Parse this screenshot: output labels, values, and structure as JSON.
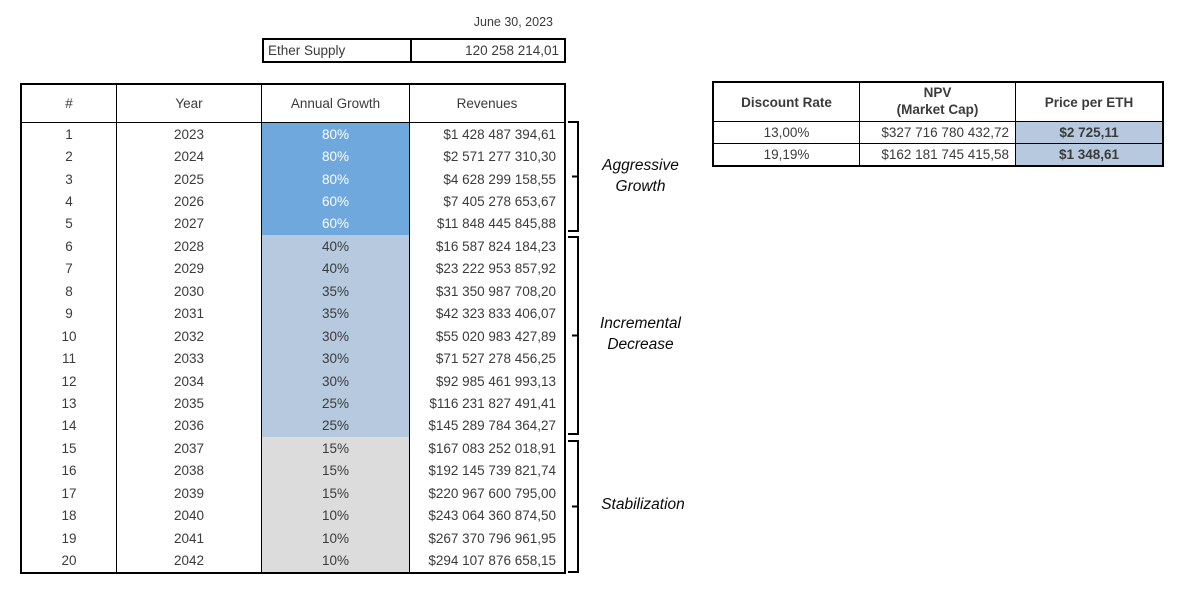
{
  "top": {
    "date": "June 30, 2023",
    "supply_label": "Ether Supply",
    "supply_value": "120 258 214,01"
  },
  "main_table": {
    "headers": {
      "num": "#",
      "year": "Year",
      "growth": "Annual Growth",
      "revenues": "Revenues"
    },
    "rows": [
      {
        "num": "1",
        "year": "2023",
        "growth": "80%",
        "revenue": "$1 428 487 394,61",
        "tier": "dark"
      },
      {
        "num": "2",
        "year": "2024",
        "growth": "80%",
        "revenue": "$2 571 277 310,30",
        "tier": "dark"
      },
      {
        "num": "3",
        "year": "2025",
        "growth": "80%",
        "revenue": "$4 628 299 158,55",
        "tier": "dark"
      },
      {
        "num": "4",
        "year": "2026",
        "growth": "60%",
        "revenue": "$7 405 278 653,67",
        "tier": "dark"
      },
      {
        "num": "5",
        "year": "2027",
        "growth": "60%",
        "revenue": "$11 848 445 845,88",
        "tier": "dark"
      },
      {
        "num": "6",
        "year": "2028",
        "growth": "40%",
        "revenue": "$16 587 824 184,23",
        "tier": "light"
      },
      {
        "num": "7",
        "year": "2029",
        "growth": "40%",
        "revenue": "$23 222 953 857,92",
        "tier": "light"
      },
      {
        "num": "8",
        "year": "2030",
        "growth": "35%",
        "revenue": "$31 350 987 708,20",
        "tier": "light"
      },
      {
        "num": "9",
        "year": "2031",
        "growth": "35%",
        "revenue": "$42 323 833 406,07",
        "tier": "light"
      },
      {
        "num": "10",
        "year": "2032",
        "growth": "30%",
        "revenue": "$55 020 983 427,89",
        "tier": "light"
      },
      {
        "num": "11",
        "year": "2033",
        "growth": "30%",
        "revenue": "$71 527 278 456,25",
        "tier": "light"
      },
      {
        "num": "12",
        "year": "2034",
        "growth": "30%",
        "revenue": "$92 985 461 993,13",
        "tier": "light"
      },
      {
        "num": "13",
        "year": "2035",
        "growth": "25%",
        "revenue": "$116 231 827 491,41",
        "tier": "light"
      },
      {
        "num": "14",
        "year": "2036",
        "growth": "25%",
        "revenue": "$145 289 784 364,27",
        "tier": "light"
      },
      {
        "num": "15",
        "year": "2037",
        "growth": "15%",
        "revenue": "$167 083 252 018,91",
        "tier": "gray"
      },
      {
        "num": "16",
        "year": "2038",
        "growth": "15%",
        "revenue": "$192 145 739 821,74",
        "tier": "gray"
      },
      {
        "num": "17",
        "year": "2039",
        "growth": "15%",
        "revenue": "$220 967 600 795,00",
        "tier": "gray"
      },
      {
        "num": "18",
        "year": "2040",
        "growth": "10%",
        "revenue": "$243 064 360 874,50",
        "tier": "gray"
      },
      {
        "num": "19",
        "year": "2041",
        "growth": "10%",
        "revenue": "$267 370 796 961,95",
        "tier": "gray"
      },
      {
        "num": "20",
        "year": "2042",
        "growth": "10%",
        "revenue": "$294 107 876 658,15",
        "tier": "gray"
      }
    ]
  },
  "phases": [
    {
      "label": "Aggressive Growth"
    },
    {
      "label": "Incremental Decrease"
    },
    {
      "label": "Stabilization"
    }
  ],
  "npv_table": {
    "headers": {
      "discount": "Discount Rate",
      "npv_line1": "NPV",
      "npv_line2": "(Market Cap)",
      "price": "Price per ETH"
    },
    "rows": [
      {
        "discount": "13,00%",
        "npv": "$327 716 780 432,72",
        "price": "$2 725,11"
      },
      {
        "discount": "19,19%",
        "npv": "$162 181 745 415,58",
        "price": "$1 348,61"
      }
    ]
  },
  "colors": {
    "dark_blue": "#6FA8DC",
    "light_blue": "#B6C9DE",
    "gray_fill": "#DCDCDC",
    "text": "#3B3B3B",
    "border": "#000000"
  }
}
